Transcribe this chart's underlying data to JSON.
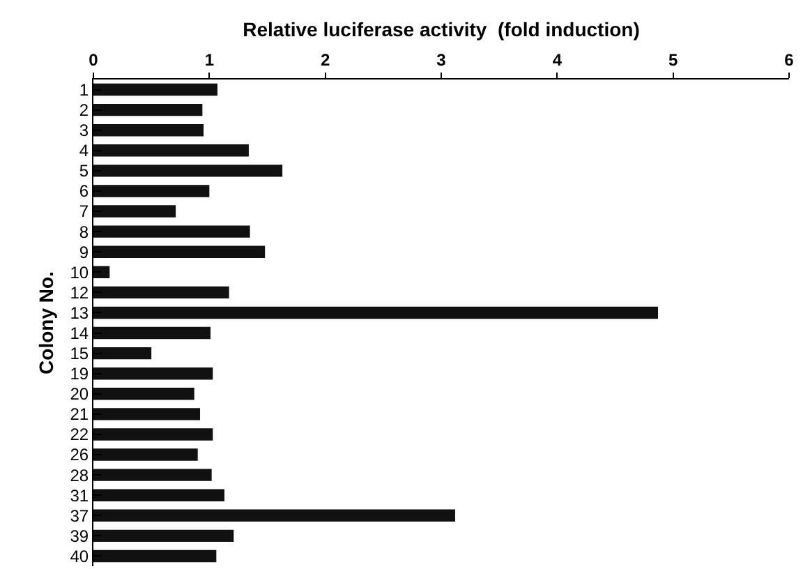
{
  "chart_data": {
    "type": "bar",
    "orientation": "horizontal",
    "xlabel": "Relative luciferase activity  (fold induction)",
    "ylabel": "Colony No.",
    "categories": [
      "1",
      "2",
      "3",
      "4",
      "5",
      "6",
      "7",
      "8",
      "9",
      "10",
      "12",
      "13",
      "14",
      "15",
      "19",
      "20",
      "21",
      "22",
      "26",
      "28",
      "31",
      "37",
      "39",
      "40"
    ],
    "values": [
      1.07,
      0.94,
      0.95,
      1.34,
      1.63,
      1.0,
      0.71,
      1.35,
      1.48,
      0.14,
      1.17,
      4.87,
      1.01,
      0.5,
      1.03,
      0.87,
      0.92,
      1.03,
      0.9,
      1.02,
      1.13,
      3.12,
      1.21,
      1.06
    ],
    "color": "#111111",
    "xlim": [
      0,
      6
    ],
    "xticks": [
      0,
      1,
      2,
      3,
      4,
      5,
      6
    ],
    "grid": false,
    "legend": false
  }
}
